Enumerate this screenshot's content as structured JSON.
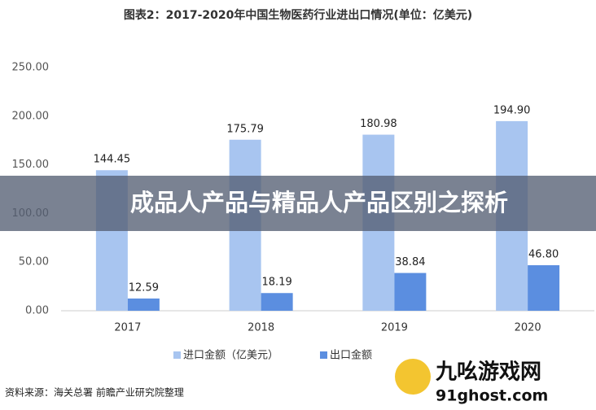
{
  "chart_data": {
    "type": "bar",
    "title": "图表2：2017-2020年中国生物医药行业进出口情况(单位：亿美元)",
    "categories": [
      "2017",
      "2018",
      "2019",
      "2020"
    ],
    "series": [
      {
        "name": "进口金额（亿美元）",
        "color": "#a8c5f0",
        "values": [
          144.45,
          175.79,
          180.98,
          194.9
        ],
        "value_labels": [
          "144.45",
          "175.79",
          "180.98",
          "194.90"
        ]
      },
      {
        "name": "出口金额",
        "color": "#5b8ee0",
        "values": [
          12.59,
          18.19,
          38.84,
          46.8
        ],
        "value_labels": [
          "12.59",
          "18.19",
          "38.84",
          "46.80"
        ]
      }
    ],
    "ylim": [
      0,
      250
    ],
    "yticks": [
      {
        "value": 0,
        "label": "0.00"
      },
      {
        "value": 50,
        "label": "50.00"
      },
      {
        "value": 100,
        "label": "100.00"
      },
      {
        "value": 150,
        "label": "150.00"
      },
      {
        "value": 200,
        "label": "200.00"
      },
      {
        "value": 250,
        "label": "250.00"
      }
    ],
    "grid": false,
    "legend": "bottom",
    "source": "资料来源：海关总署 前瞻产业研究院整理"
  },
  "banner": "成品人产品与精品人产品区别之探析",
  "logo": {
    "name": "九吆游戏网",
    "domain": "91ghost.com"
  }
}
